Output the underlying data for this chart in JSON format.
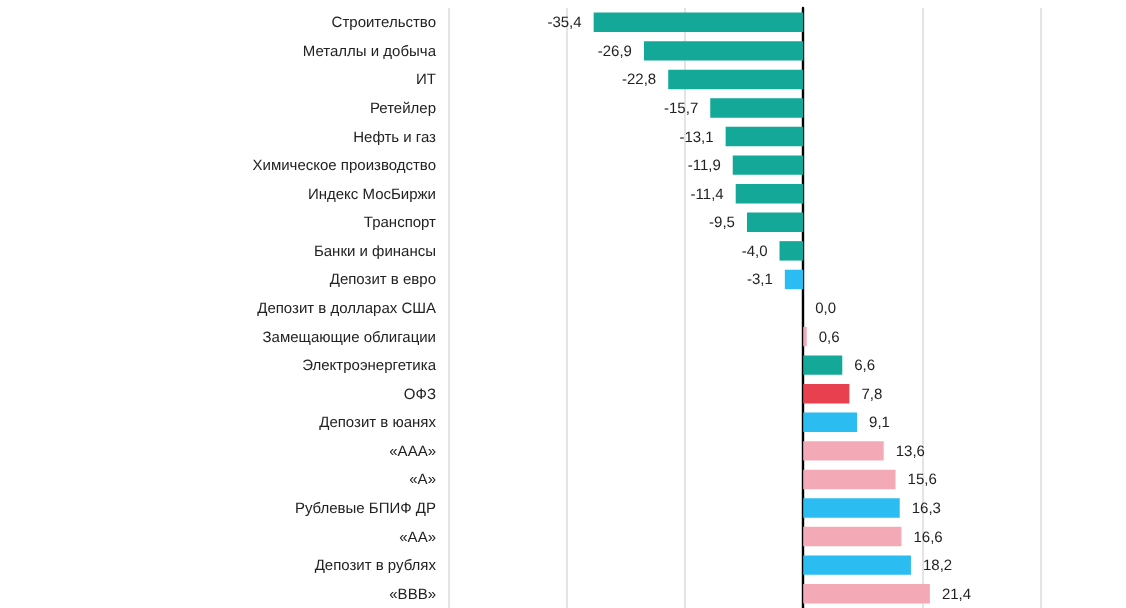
{
  "chart_data": {
    "type": "bar",
    "orientation": "horizontal",
    "categories": [
      "Строительство",
      "Металлы и добыча",
      "ИТ",
      "Ретейлер",
      "Нефть и газ",
      "Химическое производство",
      "Индекс МосБиржи",
      "Транспорт",
      "Банки и финансы",
      "Депозит в евро",
      "Депозит в долларах США",
      "Замещающие облигации",
      "Электроэнергетика",
      "ОФЗ",
      "Депозит в юанях",
      "«ААА»",
      "«А»",
      "Рублевые БПИФ ДР",
      "«АА»",
      "Депозит в рублях",
      "«ВВВ»"
    ],
    "values": [
      -35.4,
      -26.9,
      -22.8,
      -15.7,
      -13.1,
      -11.9,
      -11.4,
      -9.5,
      -4.0,
      -3.1,
      0.0,
      0.6,
      6.6,
      7.8,
      9.1,
      13.6,
      15.6,
      16.3,
      16.6,
      18.2,
      21.4
    ],
    "value_labels": [
      "-35,4",
      "-26,9",
      "-22,8",
      "-15,7",
      "-13,1",
      "-11,9",
      "-11,4",
      "-9,5",
      "-4,0",
      "-3,1",
      "0,0",
      "0,6",
      "6,6",
      "7,8",
      "9,1",
      "13,6",
      "15,6",
      "16,3",
      "16,6",
      "18,2",
      "21,4"
    ],
    "colors": [
      "#14a898",
      "#14a898",
      "#14a898",
      "#14a898",
      "#14a898",
      "#14a898",
      "#14a898",
      "#14a898",
      "#14a898",
      "#2bbcf2",
      "#2bbcf2",
      "#f4aab6",
      "#14a898",
      "#e8404f",
      "#2bbcf2",
      "#f4aab6",
      "#f4aab6",
      "#2bbcf2",
      "#f4aab6",
      "#2bbcf2",
      "#f4aab6"
    ],
    "xlim": [
      -60,
      40
    ],
    "xticks": [
      {
        "value": -60,
        "label": null
      },
      {
        "value": -40,
        "label": null
      },
      {
        "value": -20,
        "label": null
      },
      {
        "value": 0,
        "label": null
      },
      {
        "value": 20,
        "label": null
      },
      {
        "value": 40,
        "label": null
      }
    ],
    "grid": "x",
    "tick_labels": "y"
  }
}
